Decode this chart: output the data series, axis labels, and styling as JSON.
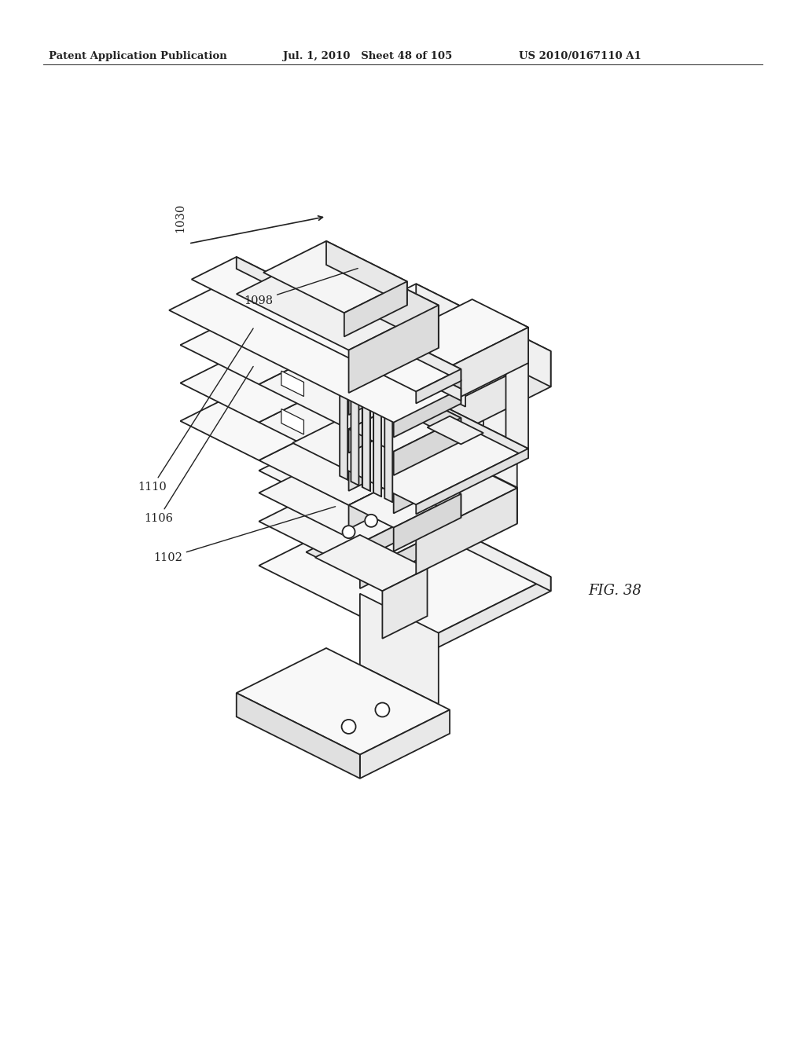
{
  "header_left": "Patent Application Publication",
  "header_mid": "Jul. 1, 2010   Sheet 48 of 105",
  "header_right": "US 2010/0167110 A1",
  "fig_label": "FIG. 38",
  "ref_1030": "1030",
  "ref_1098": "1098",
  "ref_1102": "1102",
  "ref_1106": "1106",
  "ref_1110": "1110",
  "bg_color": "#ffffff",
  "line_color": "#222222",
  "header_fontsize": 9.5,
  "label_fontsize": 10.5,
  "fig_label_fontsize": 13
}
